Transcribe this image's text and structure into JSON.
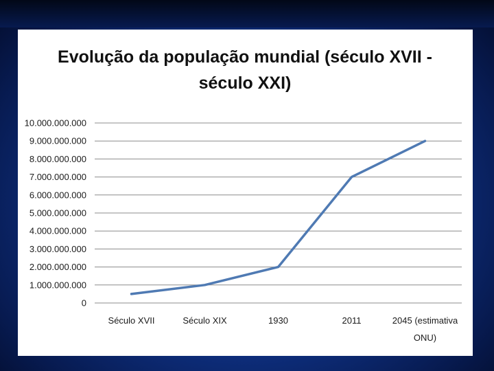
{
  "slide": {
    "background_color": "#0f3286",
    "panel_color": "#ffffff"
  },
  "chart_data": {
    "type": "line",
    "title_lines": [
      "Evolução da população mundial (século XVII -",
      "século XXI)"
    ],
    "categories": [
      "Século XVII",
      "Século XIX",
      "1930",
      "2011",
      "2045 (estimativa ONU)"
    ],
    "category_label_lines": [
      [
        "Século XVII"
      ],
      [
        "Século XIX"
      ],
      [
        "1930"
      ],
      [
        "2011"
      ],
      [
        "2045 (estimativa",
        "ONU)"
      ]
    ],
    "series": [
      {
        "values": [
          500000000,
          1000000000,
          2000000000,
          7000000000,
          9000000000
        ],
        "color": "#4f7ab3"
      }
    ],
    "ylim": [
      0,
      10000000000
    ],
    "y_ticks": [
      0,
      1000000000,
      2000000000,
      3000000000,
      4000000000,
      5000000000,
      6000000000,
      7000000000,
      8000000000,
      9000000000,
      10000000000
    ],
    "y_tick_labels": [
      "0",
      "1.000.000.000",
      "2.000.000.000",
      "3.000.000.000",
      "4.000.000.000",
      "5.000.000.000",
      "6.000.000.000",
      "7.000.000.000",
      "8.000.000.000",
      "9.000.000.000",
      "10.000.000.000"
    ],
    "grid": true,
    "legend": "none"
  }
}
